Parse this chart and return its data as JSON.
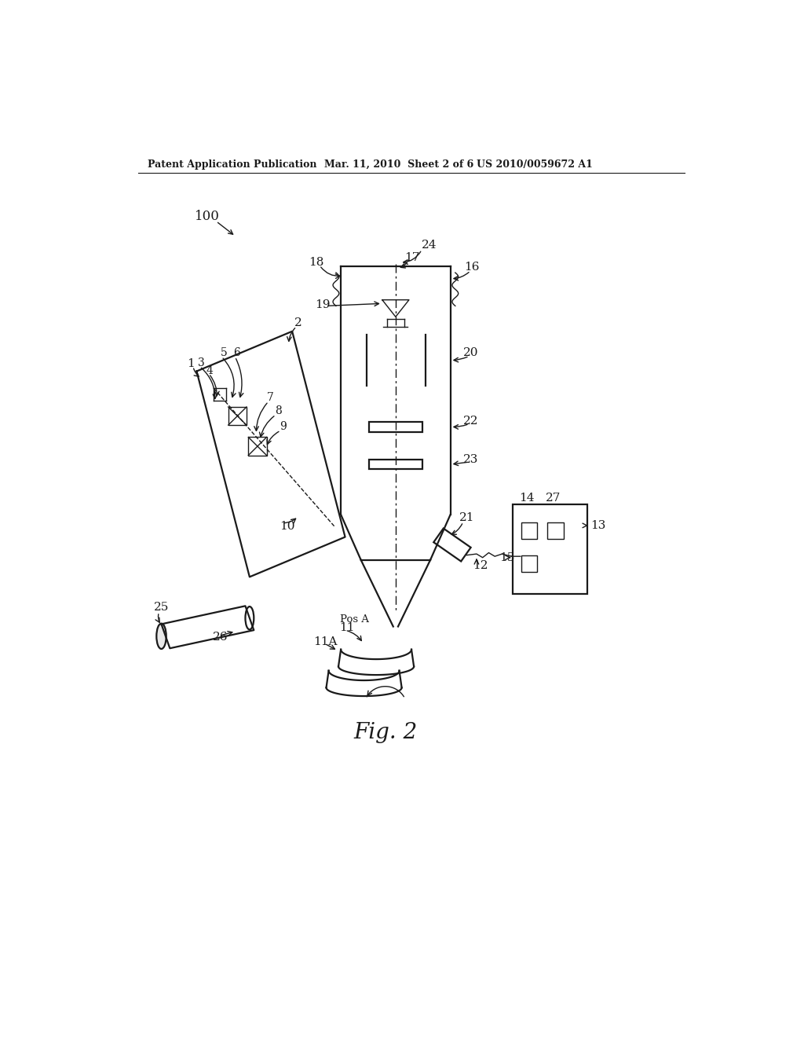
{
  "bg_color": "#ffffff",
  "line_color": "#1a1a1a",
  "header_left": "Patent Application Publication",
  "header_mid": "Mar. 11, 2010  Sheet 2 of 6",
  "header_right": "US 2010/0059672 A1",
  "fig_label": "Fig. 2"
}
